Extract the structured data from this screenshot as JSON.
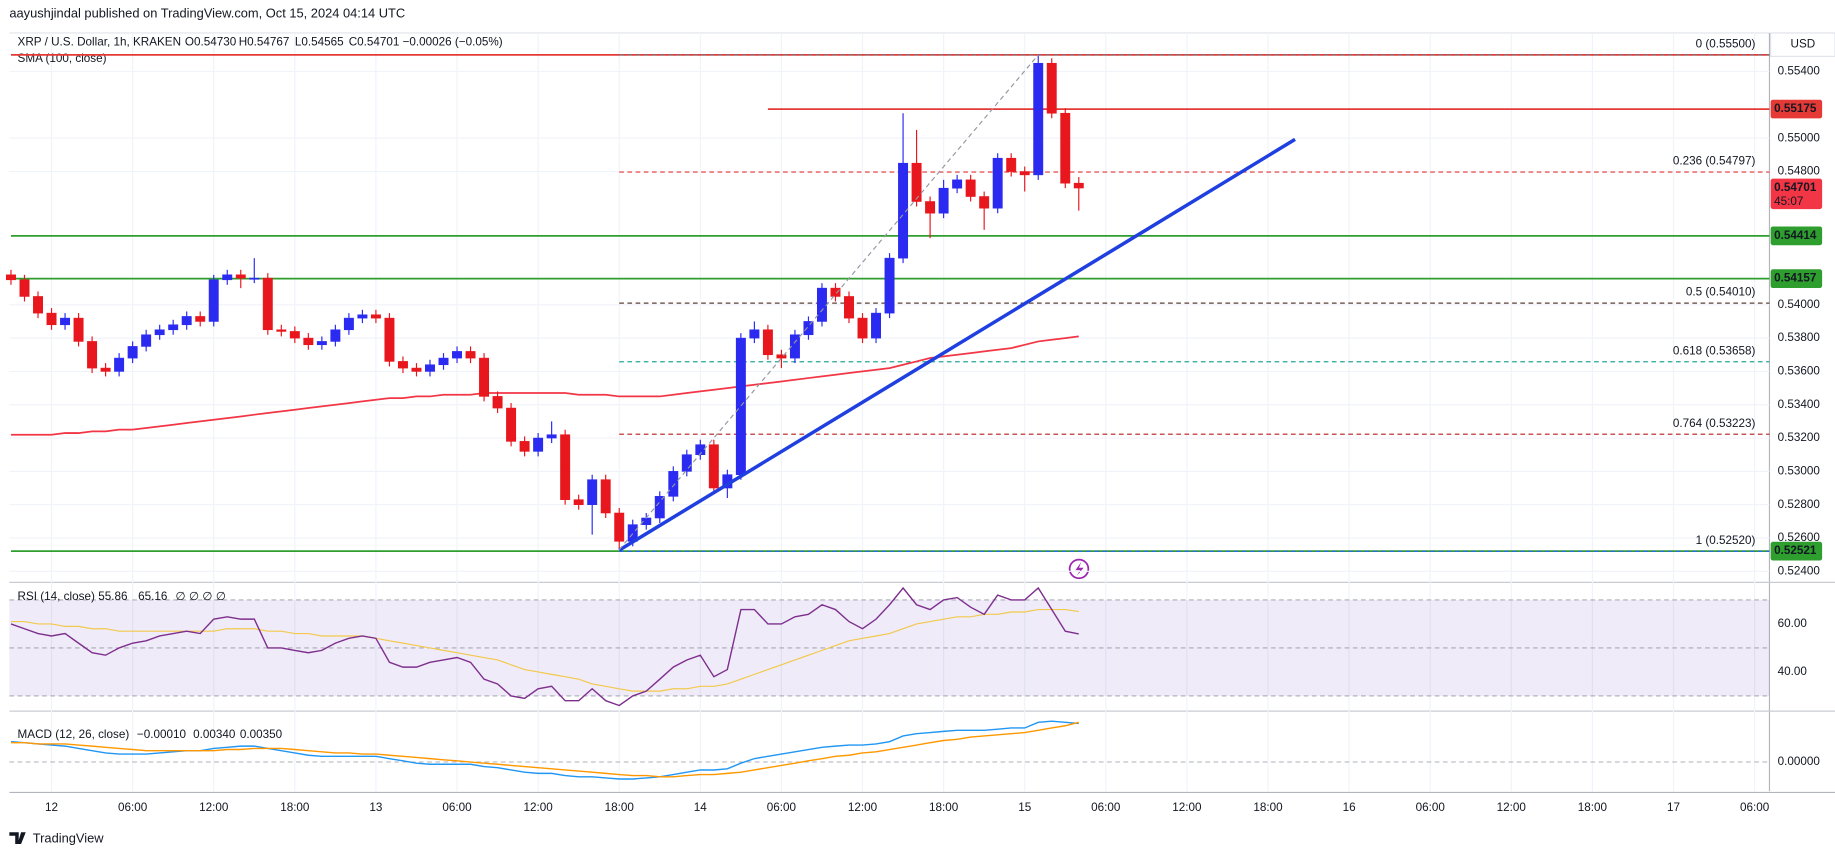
{
  "header": {
    "publisher": "aayushjindal published on TradingView.com, Oct 15, 2024 04:14 UTC",
    "currency": "USD",
    "logo": "TradingView"
  },
  "chart_data": [
    {
      "type": "candlestick",
      "title": "XRP / U.S. Dollar, 1h, KRAKEN",
      "legend_values": [
        "O0.54730",
        "H0.54767",
        "L0.54565",
        "C0.54701",
        "−0.00026 (−0.05%)"
      ],
      "up_color": "#2a2af0",
      "down_color": "#e8171d",
      "open": [
        0.5418,
        0.5415,
        0.5405,
        0.5395,
        0.5388,
        0.5392,
        0.5378,
        0.5362,
        0.536,
        0.5368,
        0.5375,
        0.5382,
        0.5385,
        0.5388,
        0.5393,
        0.539,
        0.5415,
        0.5418,
        0.5416,
        0.5416,
        0.5385,
        0.5384,
        0.538,
        0.5376,
        0.5378,
        0.5385,
        0.5392,
        0.5394,
        0.5392,
        0.5366,
        0.5362,
        0.536,
        0.5364,
        0.5368,
        0.5372,
        0.5368,
        0.5345,
        0.5338,
        0.5318,
        0.5312,
        0.532,
        0.5322,
        0.5283,
        0.528,
        0.5295,
        0.5275,
        0.5258,
        0.5268,
        0.5272,
        0.5285,
        0.53,
        0.531,
        0.5316,
        0.529,
        0.5298,
        0.538,
        0.5385,
        0.537,
        0.5368,
        0.5382,
        0.539,
        0.541,
        0.5405,
        0.5392,
        0.538,
        0.5395,
        0.5428,
        0.5485,
        0.5462,
        0.5455,
        0.547,
        0.5475,
        0.5465,
        0.5458,
        0.5488,
        0.548,
        0.5478,
        0.5545,
        0.5515,
        0.5473
      ],
      "high": [
        0.5421,
        0.5418,
        0.5408,
        0.5398,
        0.5395,
        0.5395,
        0.5381,
        0.5365,
        0.5371,
        0.5378,
        0.5385,
        0.5388,
        0.5391,
        0.5396,
        0.5396,
        0.5418,
        0.5421,
        0.5421,
        0.5428,
        0.5419,
        0.5388,
        0.5387,
        0.5383,
        0.5381,
        0.5388,
        0.5395,
        0.5397,
        0.5397,
        0.5395,
        0.5369,
        0.5365,
        0.5367,
        0.5371,
        0.5375,
        0.5375,
        0.5371,
        0.5348,
        0.5341,
        0.5321,
        0.5323,
        0.533,
        0.5325,
        0.5286,
        0.5298,
        0.5298,
        0.5278,
        0.5271,
        0.5275,
        0.5288,
        0.5303,
        0.5313,
        0.5319,
        0.5319,
        0.5301,
        0.5383,
        0.539,
        0.5388,
        0.5373,
        0.5385,
        0.5393,
        0.5413,
        0.5413,
        0.5408,
        0.5395,
        0.5398,
        0.5431,
        0.5515,
        0.5505,
        0.5465,
        0.5475,
        0.5478,
        0.5478,
        0.5468,
        0.5491,
        0.5491,
        0.5483,
        0.555,
        0.5548,
        0.5518,
        0.54767
      ],
      "low": [
        0.5412,
        0.5402,
        0.5392,
        0.5385,
        0.5385,
        0.5375,
        0.5359,
        0.5357,
        0.5357,
        0.5365,
        0.5372,
        0.5379,
        0.5382,
        0.5385,
        0.5387,
        0.5387,
        0.5412,
        0.541,
        0.5413,
        0.5382,
        0.5381,
        0.5377,
        0.5373,
        0.5373,
        0.5375,
        0.5382,
        0.5389,
        0.5389,
        0.5363,
        0.5359,
        0.5357,
        0.5357,
        0.5361,
        0.5365,
        0.5365,
        0.5342,
        0.5335,
        0.5315,
        0.5309,
        0.5309,
        0.5317,
        0.528,
        0.5277,
        0.5262,
        0.5272,
        0.5253,
        0.5255,
        0.5265,
        0.5269,
        0.5282,
        0.5297,
        0.5307,
        0.5287,
        0.5284,
        0.5295,
        0.5377,
        0.5367,
        0.5362,
        0.5365,
        0.5379,
        0.5387,
        0.5402,
        0.5389,
        0.5377,
        0.5377,
        0.5392,
        0.5425,
        0.5459,
        0.544,
        0.5452,
        0.5467,
        0.5462,
        0.5445,
        0.5455,
        0.5477,
        0.5468,
        0.5475,
        0.5512,
        0.547,
        0.54565
      ],
      "close": [
        0.5415,
        0.5405,
        0.5395,
        0.5388,
        0.5392,
        0.5378,
        0.5362,
        0.536,
        0.5368,
        0.5375,
        0.5382,
        0.5385,
        0.5388,
        0.5393,
        0.539,
        0.5415,
        0.5418,
        0.5416,
        0.5416,
        0.5385,
        0.5384,
        0.538,
        0.5376,
        0.5378,
        0.5385,
        0.5392,
        0.5394,
        0.5392,
        0.5366,
        0.5362,
        0.536,
        0.5364,
        0.5368,
        0.5372,
        0.5368,
        0.5345,
        0.5338,
        0.5318,
        0.5312,
        0.532,
        0.5322,
        0.5283,
        0.528,
        0.5295,
        0.5275,
        0.5258,
        0.5268,
        0.5272,
        0.5285,
        0.53,
        0.531,
        0.5316,
        0.529,
        0.5298,
        0.538,
        0.5385,
        0.537,
        0.5368,
        0.5382,
        0.539,
        0.541,
        0.5405,
        0.5392,
        0.538,
        0.5395,
        0.5428,
        0.5485,
        0.5462,
        0.5455,
        0.547,
        0.5475,
        0.5465,
        0.5458,
        0.5488,
        0.548,
        0.5478,
        0.5545,
        0.5515,
        0.5473,
        0.54701
      ],
      "sma": {
        "name": "SMA (100, close)",
        "color": "#f23645",
        "values": [
          0.5322,
          0.5322,
          0.5322,
          0.5322,
          0.5323,
          0.5323,
          0.5324,
          0.5324,
          0.5325,
          0.5325,
          0.5326,
          0.5327,
          0.5328,
          0.5329,
          0.533,
          0.5331,
          0.5332,
          0.5333,
          0.5334,
          0.5335,
          0.5336,
          0.5337,
          0.5338,
          0.5339,
          0.534,
          0.5341,
          0.5342,
          0.5343,
          0.5344,
          0.5344,
          0.5345,
          0.5345,
          0.5346,
          0.5346,
          0.5346,
          0.5347,
          0.5347,
          0.5347,
          0.5347,
          0.5347,
          0.5347,
          0.5347,
          0.5346,
          0.5346,
          0.5346,
          0.5345,
          0.5345,
          0.5345,
          0.5345,
          0.5346,
          0.5347,
          0.5348,
          0.5349,
          0.535,
          0.5351,
          0.5352,
          0.5353,
          0.5354,
          0.5355,
          0.5356,
          0.5357,
          0.5358,
          0.5359,
          0.536,
          0.5361,
          0.5362,
          0.5364,
          0.5366,
          0.5368,
          0.5369,
          0.537,
          0.5371,
          0.5372,
          0.5373,
          0.5374,
          0.5376,
          0.5378,
          0.5379,
          0.538,
          0.5381
        ]
      },
      "last_price_badge": {
        "countdown": "45:07",
        "color": "#f23645"
      },
      "levels": [
        {
          "value": 0.555,
          "color": "#e53935",
          "start": 0,
          "badge": false
        },
        {
          "value": 0.55175,
          "color": "#e53935",
          "start": 56,
          "badge": true
        },
        {
          "value": 0.54414,
          "color": "#2e9e2e",
          "start": 0,
          "badge": true
        },
        {
          "value": 0.54157,
          "color": "#2e9e2e",
          "start": 0,
          "badge": true
        },
        {
          "value": 0.52521,
          "color": "#2e9e2e",
          "start": 0,
          "badge": true
        }
      ],
      "fib": {
        "start": 45,
        "levels": [
          {
            "value": 0.555,
            "label": "0 (0.55500)",
            "color": "#787b86"
          },
          {
            "value": 0.54797,
            "label": "0.236 (0.54797)",
            "color": "#e53935"
          },
          {
            "value": 0.5401,
            "label": "0.5 (0.54010)",
            "color": "#5d4037"
          },
          {
            "value": 0.53658,
            "label": "0.618 (0.53658)",
            "color": "#26a69a"
          },
          {
            "value": 0.53223,
            "label": "0.764 (0.53223)",
            "color": "#b71c1c"
          },
          {
            "value": 0.5252,
            "label": "1 (0.52520)",
            "color": "#2962ff"
          }
        ]
      },
      "trendlines": [
        {
          "x": [
            45,
            95
          ],
          "y": [
            0.52527,
            0.54993
          ],
          "color": "#1f3fe0",
          "dashed": false
        },
        {
          "x": [
            45,
            76
          ],
          "y": [
            0.5253,
            0.555
          ],
          "color": "#9598a1",
          "dashed": true
        }
      ],
      "xlim": [
        -0.12,
        130.1
      ],
      "xticks": [
        {
          "value": 3,
          "label": "12"
        },
        {
          "value": 9,
          "label": "06:00"
        },
        {
          "value": 15,
          "label": "12:00"
        },
        {
          "value": 21,
          "label": "18:00"
        },
        {
          "value": 27,
          "label": "13"
        },
        {
          "value": 33,
          "label": "06:00"
        },
        {
          "value": 39,
          "label": "12:00"
        },
        {
          "value": 45,
          "label": "18:00"
        },
        {
          "value": 51,
          "label": "14"
        },
        {
          "value": 57,
          "label": "06:00"
        },
        {
          "value": 63,
          "label": "12:00"
        },
        {
          "value": 69,
          "label": "18:00"
        },
        {
          "value": 75,
          "label": "15"
        },
        {
          "value": 81,
          "label": "06:00"
        },
        {
          "value": 87,
          "label": "12:00"
        },
        {
          "value": 93,
          "label": "18:00"
        },
        {
          "value": 99,
          "label": "16"
        },
        {
          "value": 105,
          "label": "06:00"
        },
        {
          "value": 111,
          "label": "12:00"
        },
        {
          "value": 117,
          "label": "18:00"
        },
        {
          "value": 123,
          "label": "17"
        },
        {
          "value": 129,
          "label": "06:00"
        }
      ],
      "ylim": [
        0.52351,
        0.55632
      ],
      "yticks": [
        {
          "value": 0.554,
          "label": "0.55400"
        },
        {
          "value": 0.55,
          "label": "0.55000"
        },
        {
          "value": 0.548,
          "label": "0.54800"
        },
        {
          "value": 0.54,
          "label": "0.54000"
        },
        {
          "value": 0.538,
          "label": "0.53800"
        },
        {
          "value": 0.536,
          "label": "0.53600"
        },
        {
          "value": 0.534,
          "label": "0.53400"
        },
        {
          "value": 0.532,
          "label": "0.53200"
        },
        {
          "value": 0.53,
          "label": "0.53000"
        },
        {
          "value": 0.528,
          "label": "0.52800"
        },
        {
          "value": 0.526,
          "label": "0.52600"
        },
        {
          "value": 0.524,
          "label": "0.52400"
        }
      ],
      "grid": true
    },
    {
      "type": "line",
      "title": "RSI (14, close)",
      "extra": "∅ ∅ ∅ ∅",
      "bands": [
        30,
        50,
        70
      ],
      "band_color": "#7e57c2",
      "series": [
        {
          "legend": "55.86",
          "color": "#7e2f8e",
          "values": [
            60,
            58,
            56,
            55,
            56,
            52,
            48,
            47,
            50,
            52,
            53,
            55,
            56,
            57,
            56,
            62,
            63,
            62,
            62,
            50,
            50,
            49,
            48,
            49,
            52,
            54,
            55,
            54,
            44,
            42,
            42,
            44,
            45,
            46,
            44,
            37,
            35,
            30,
            29,
            33,
            34,
            28,
            28,
            33,
            28,
            26,
            30,
            32,
            37,
            42,
            45,
            47,
            38,
            41,
            66,
            66,
            60,
            60,
            63,
            64,
            68,
            66,
            61,
            58,
            62,
            68,
            75,
            68,
            66,
            70,
            71,
            67,
            64,
            72,
            70,
            70,
            75,
            66,
            57,
            55.86
          ]
        },
        {
          "legend": "65.16",
          "color": "#f2c94c",
          "values": [
            61,
            61,
            60,
            60,
            59,
            59,
            58,
            58,
            57,
            57,
            57,
            57,
            57,
            57,
            57,
            57,
            58,
            58,
            58,
            57,
            57,
            56,
            56,
            55,
            55,
            55,
            55,
            54,
            53,
            52,
            51,
            50,
            49,
            48,
            47,
            46,
            45,
            43,
            41,
            40,
            39,
            38,
            37,
            35,
            34,
            33,
            32,
            32,
            32,
            33,
            33,
            34,
            34,
            35,
            37,
            39,
            41,
            43,
            45,
            47,
            49,
            51,
            53,
            54,
            55,
            56,
            58,
            60,
            61,
            62,
            63,
            63,
            64,
            64,
            65,
            65,
            66,
            66,
            66,
            65.16
          ]
        }
      ],
      "ylim": [
        24.9,
        76.1
      ],
      "yticks": [
        {
          "value": 60,
          "label": "60.00"
        },
        {
          "value": 40,
          "label": "40.00"
        }
      ]
    },
    {
      "type": "line",
      "title": "MACD (12, 26, close)",
      "histogram_legend": "−0.00010",
      "histogram_color": "#f23645",
      "series": [
        {
          "legend": "0.00340",
          "color": "#2196f3",
          "values": [
            0.0018,
            0.0017,
            0.0016,
            0.0015,
            0.0014,
            0.0012,
            0.001,
            0.0008,
            0.0007,
            0.0007,
            0.0007,
            0.0008,
            0.0009,
            0.001,
            0.001,
            0.0012,
            0.0013,
            0.0014,
            0.0014,
            0.0012,
            0.001,
            0.0008,
            0.0006,
            0.0005,
            0.0005,
            0.0005,
            0.0005,
            0.0005,
            0.0003,
            0.0001,
            -0.0001,
            -0.0002,
            -0.0002,
            -0.0002,
            -0.0002,
            -0.0004,
            -0.0005,
            -0.0007,
            -0.0009,
            -0.001,
            -0.001,
            -0.0012,
            -0.0013,
            -0.0013,
            -0.0014,
            -0.0015,
            -0.0015,
            -0.0014,
            -0.0013,
            -0.0011,
            -0.0009,
            -0.0007,
            -0.0007,
            -0.0006,
            -0.0001,
            0.0003,
            0.0005,
            0.0007,
            0.0009,
            0.0011,
            0.0013,
            0.0014,
            0.0015,
            0.0015,
            0.0016,
            0.0018,
            0.0023,
            0.0025,
            0.0026,
            0.0027,
            0.0028,
            0.0028,
            0.0028,
            0.0029,
            0.003,
            0.003,
            0.0035,
            0.0036,
            0.0035,
            0.0034
          ]
        },
        {
          "legend": "0.00350",
          "color": "#ff9800",
          "values": [
            0.0017,
            0.0017,
            0.0016,
            0.0016,
            0.0016,
            0.0015,
            0.0014,
            0.0013,
            0.0012,
            0.0011,
            0.001,
            0.001,
            0.001,
            0.001,
            0.001,
            0.001,
            0.0011,
            0.0011,
            0.0012,
            0.0012,
            0.0012,
            0.0011,
            0.001,
            0.0009,
            0.0008,
            0.0008,
            0.0007,
            0.0007,
            0.0006,
            0.0005,
            0.0004,
            0.0003,
            0.0002,
            0.0001,
            0,
            -0.0001,
            -0.0002,
            -0.0003,
            -0.0004,
            -0.0005,
            -0.0006,
            -0.0007,
            -0.0008,
            -0.0009,
            -0.001,
            -0.0011,
            -0.0012,
            -0.0012,
            -0.0013,
            -0.0013,
            -0.0012,
            -0.0011,
            -0.0011,
            -0.001,
            -0.0009,
            -0.0007,
            -0.0005,
            -0.0003,
            -0.0001,
            0.0001,
            0.0003,
            0.0005,
            0.0006,
            0.0008,
            0.0009,
            0.0011,
            0.0013,
            0.0015,
            0.0017,
            0.0019,
            0.002,
            0.0022,
            0.0023,
            0.0024,
            0.0025,
            0.0026,
            0.0028,
            0.003,
            0.0032,
            0.0035
          ]
        }
      ],
      "ylim": [
        -0.00258,
        0.00423
      ],
      "yticks": [
        {
          "value": 0,
          "label": "0.00000"
        }
      ]
    }
  ]
}
